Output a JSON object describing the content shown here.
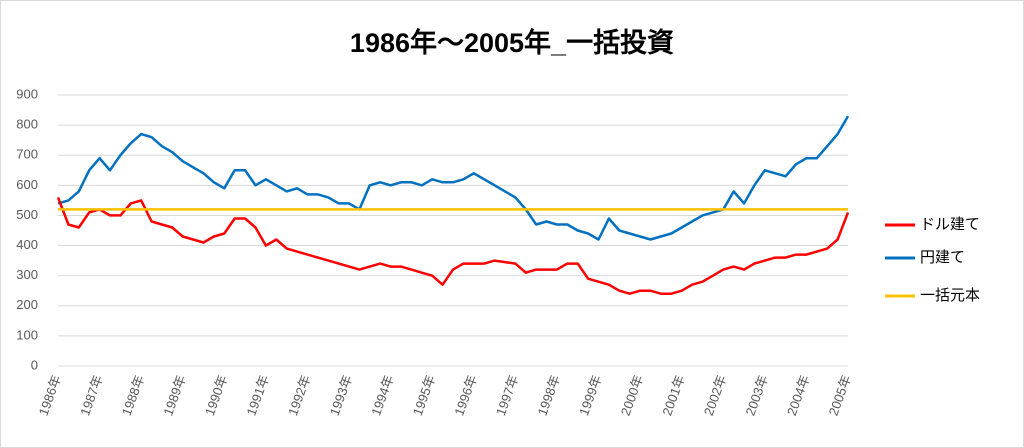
{
  "chart_data": {
    "type": "line",
    "title": "1986年～2005年_一括投資",
    "categories": [
      "1986年",
      null,
      null,
      null,
      "1987年",
      null,
      null,
      null,
      "1988年",
      null,
      null,
      null,
      "1989年",
      null,
      null,
      null,
      "1990年",
      null,
      null,
      null,
      "1991年",
      null,
      null,
      null,
      "1992年",
      null,
      null,
      null,
      "1993年",
      null,
      null,
      null,
      "1994年",
      null,
      null,
      null,
      "1995年",
      null,
      null,
      null,
      "1996年",
      null,
      null,
      null,
      "1997年",
      null,
      null,
      null,
      "1998年",
      null,
      null,
      null,
      "1999年",
      null,
      null,
      null,
      "2000年",
      null,
      null,
      null,
      "2001年",
      null,
      null,
      null,
      "2002年",
      null,
      null,
      null,
      "2003年",
      null,
      null,
      null,
      "2004年",
      null,
      null,
      null,
      "2005年"
    ],
    "series": [
      {
        "name": "ドル建て",
        "color": "#ff0000",
        "values": [
          560,
          470,
          460,
          510,
          520,
          500,
          500,
          540,
          550,
          480,
          470,
          460,
          430,
          420,
          410,
          430,
          440,
          490,
          490,
          460,
          400,
          420,
          390,
          380,
          370,
          360,
          350,
          340,
          330,
          320,
          330,
          340,
          330,
          330,
          320,
          310,
          300,
          270,
          320,
          340,
          340,
          340,
          350,
          345,
          340,
          310,
          320,
          320,
          320,
          340,
          340,
          290,
          280,
          270,
          250,
          240,
          250,
          250,
          240,
          240,
          250,
          270,
          280,
          300,
          320,
          330,
          320,
          340,
          350,
          360,
          360,
          370,
          370,
          380,
          390,
          420,
          510
        ]
      },
      {
        "name": "円建て",
        "color": "#0070c0",
        "values": [
          540,
          550,
          580,
          650,
          690,
          650,
          700,
          740,
          770,
          760,
          730,
          710,
          680,
          660,
          640,
          610,
          590,
          650,
          650,
          600,
          620,
          600,
          580,
          590,
          570,
          570,
          560,
          540,
          540,
          520,
          600,
          610,
          600,
          610,
          610,
          600,
          620,
          610,
          610,
          620,
          640,
          620,
          600,
          580,
          560,
          520,
          470,
          480,
          470,
          470,
          450,
          440,
          420,
          490,
          450,
          440,
          430,
          420,
          430,
          440,
          460,
          480,
          500,
          510,
          520,
          580,
          540,
          600,
          650,
          640,
          630,
          670,
          690,
          690,
          730,
          770,
          830
        ]
      },
      {
        "name": "一括元本",
        "color": "#ffc000",
        "values": [
          520,
          520,
          520,
          520,
          520,
          520,
          520,
          520,
          520,
          520,
          520,
          520,
          520,
          520,
          520,
          520,
          520,
          520,
          520,
          520,
          520,
          520,
          520,
          520,
          520,
          520,
          520,
          520,
          520,
          520,
          520,
          520,
          520,
          520,
          520,
          520,
          520,
          520,
          520,
          520,
          520,
          520,
          520,
          520,
          520,
          520,
          520,
          520,
          520,
          520,
          520,
          520,
          520,
          520,
          520,
          520,
          520,
          520,
          520,
          520,
          520,
          520,
          520,
          520,
          520,
          520,
          520,
          520,
          520,
          520,
          520,
          520,
          520,
          520,
          520,
          520,
          520
        ]
      }
    ],
    "ylim": [
      0,
      900
    ],
    "yticks": [
      0,
      100,
      200,
      300,
      400,
      500,
      600,
      700,
      800,
      900
    ],
    "grid": true,
    "legend": "right"
  }
}
